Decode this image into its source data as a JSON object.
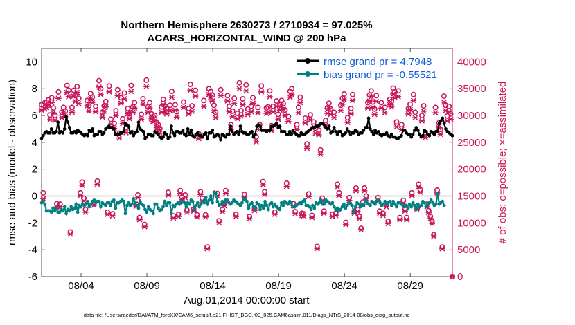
{
  "colors": {
    "rmse": "#000000",
    "bias": "#008080",
    "obs": "#c8175c",
    "legend_text": "#0b5bd8",
    "zero_line": "#b3b3b3"
  },
  "chart_data": {
    "type": "line",
    "title_line1": "Northern Hemisphere 2630273 / 2710934 = 97.025%",
    "title_line2": "ACARS_HORIZONTAL_WIND @ 200 hPa",
    "ylabel_left": "rmse and bias (model - observation)",
    "ylabel_right": "# of obs: o=possible; ×=assimilated",
    "xlabel": "Aug.01,2014 00:00:00 start",
    "footnote": "data file: /Users/raeder/DAI/ATM_forcXX/CAM6_setup/f.e21.FHIST_BGC.f09_025.CAM6assim.011/Diags_NTrS_2014-08/obs_diag_output.nc",
    "xlim": [
      1,
      32.2
    ],
    "ylim_left": [
      -6,
      11
    ],
    "ylim_right": [
      0,
      42500
    ],
    "yticks_left": [
      -6,
      -4,
      -2,
      0,
      2,
      4,
      6,
      8,
      10
    ],
    "yticks_right": [
      0,
      5000,
      10000,
      15000,
      20000,
      25000,
      30000,
      35000,
      40000
    ],
    "xticks": [
      {
        "day": 4,
        "label": "08/04"
      },
      {
        "day": 9,
        "label": "08/09"
      },
      {
        "day": 14,
        "label": "08/14"
      },
      {
        "day": 19,
        "label": "08/19"
      },
      {
        "day": 24,
        "label": "08/24"
      },
      {
        "day": 29,
        "label": "08/29"
      }
    ],
    "legend": [
      {
        "name": "rmse grand pr = 4.7948",
        "series": "rmse"
      },
      {
        "name": "bias grand pr = -0.55521",
        "series": "bias"
      }
    ],
    "series": [
      {
        "name": "rmse",
        "values": [
          4.3,
          4.5,
          4.7,
          4.8,
          4.7,
          4.7,
          5.0,
          4.7,
          4.7,
          4.8,
          5.5,
          4.7,
          4.8,
          4.7,
          5.0,
          5.9,
          5.5,
          5.1,
          4.7,
          4.7,
          4.8,
          4.7,
          4.9,
          4.8,
          4.7,
          4.6,
          4.5,
          4.6,
          4.5,
          4.9,
          4.8,
          5.0,
          4.5,
          4.6,
          4.6,
          4.8,
          4.8,
          4.6,
          4.7,
          5.0,
          5.1,
          5.2,
          5.1,
          5.1,
          5.0,
          4.6,
          4.6,
          4.6,
          4.7,
          4.7,
          4.8,
          5.4,
          5.3,
          5.2,
          4.7,
          4.8,
          4.5,
          4.7,
          4.8,
          5.5,
          5.0,
          4.9,
          4.8,
          4.3,
          4.4,
          4.6,
          4.6,
          4.5,
          4.5,
          4.8,
          4.7,
          4.6,
          4.4,
          4.3,
          4.4,
          4.7,
          4.6,
          4.3,
          4.4,
          5.2,
          4.7,
          4.5,
          4.8,
          4.8,
          4.7,
          4.7,
          4.9,
          4.6,
          4.5,
          5.0,
          4.6,
          4.9,
          4.5,
          4.4,
          4.6,
          4.7,
          4.5,
          4.5,
          4.4,
          4.6,
          4.7,
          4.3,
          4.7,
          4.7,
          4.9,
          4.4,
          4.5,
          4.6,
          4.5,
          4.2,
          4.6,
          4.5,
          4.4,
          4.6,
          4.6,
          5.2,
          4.8,
          4.6,
          4.7,
          4.8,
          4.6,
          5.2,
          4.8,
          4.7,
          4.7,
          4.6,
          4.6,
          4.7,
          4.8,
          4.4,
          4.6,
          5.2,
          5.3,
          5.2,
          4.9,
          4.9,
          4.9,
          4.8,
          4.9,
          4.9,
          5.2,
          5.2,
          5.3,
          5.4,
          5.1,
          5.2,
          4.8,
          4.8,
          4.8,
          4.6,
          4.6,
          4.8,
          4.6,
          4.9,
          4.7,
          4.6,
          4.5,
          4.5,
          4.7,
          4.6,
          4.6,
          4.7,
          4.8,
          4.9,
          5.0,
          5.1,
          5.1,
          5.2,
          5.2,
          5.3,
          5.4,
          5.4,
          5.3,
          5.1,
          5.0,
          5.2,
          4.7,
          4.8,
          5.1,
          4.8,
          4.6,
          4.8,
          4.8,
          4.5,
          4.6,
          4.7,
          5.0,
          4.8,
          4.6,
          4.7,
          4.7,
          4.9,
          4.8,
          4.6,
          4.7,
          4.7,
          4.9,
          5.1,
          5.1,
          5.8,
          5.0,
          4.8,
          4.6,
          4.9,
          4.7,
          4.8,
          4.6,
          4.5,
          4.6,
          4.6,
          4.7,
          4.5,
          4.4,
          4.6,
          4.4,
          4.4,
          4.3,
          4.3,
          4.4,
          4.5,
          4.9,
          4.9,
          4.7,
          4.6,
          4.6,
          4.4,
          4.6,
          4.9,
          5.1,
          4.9,
          4.6,
          4.4,
          4.5,
          4.9,
          4.8,
          4.6,
          4.5,
          4.8,
          4.7,
          4.6,
          4.8,
          4.8,
          5.4,
          5.6,
          5.8,
          5.4,
          5.0,
          4.8,
          4.7,
          4.6,
          4.5
        ]
      },
      {
        "name": "bias",
        "values": [
          -0.5,
          -0.4,
          -0.6,
          -1.1,
          -1.1,
          -1.1,
          -1.2,
          -0.9,
          -1.1,
          -0.9,
          -1.2,
          -1.2,
          -1.0,
          -1.1,
          -0.8,
          -1.3,
          -1.0,
          -1.1,
          -0.8,
          -1.0,
          -0.9,
          -0.6,
          -1.2,
          -0.7,
          -0.8,
          -0.6,
          -0.7,
          -0.6,
          -0.4,
          -0.8,
          -0.6,
          -0.4,
          -0.3,
          -0.5,
          -0.4,
          -0.4,
          -0.8,
          -0.5,
          -0.6,
          -0.7,
          -0.5,
          -0.5,
          -0.7,
          -0.4,
          -0.3,
          -0.9,
          -0.5,
          -0.5,
          -0.4,
          -0.3,
          -0.4,
          -1.3,
          -0.7,
          -0.5,
          -0.7,
          -0.6,
          -0.2,
          -0.5,
          -0.7,
          -0.9,
          -0.4,
          -0.6,
          -0.7,
          -1.0,
          -1.2,
          -0.8,
          -1.0,
          -1.1,
          -1.3,
          -0.6,
          -0.6,
          -0.9,
          -1.1,
          -1.0,
          -0.8,
          -0.4,
          -0.7,
          -0.5,
          -0.5,
          -1.3,
          -0.7,
          -0.8,
          -0.6,
          -0.5,
          -0.6,
          -0.5,
          -0.4,
          -0.5,
          -0.8,
          -0.5,
          -0.6,
          -0.3,
          -0.4,
          -1.0,
          -0.7,
          -0.5,
          -0.8,
          -0.6,
          -0.4,
          -0.5,
          -0.1,
          -0.6,
          -0.3,
          0.0,
          -0.5,
          0.3,
          0.2,
          -0.4,
          -0.7,
          -0.6,
          -0.4,
          -0.6,
          -0.3,
          -0.3,
          -0.5,
          -0.6,
          -0.5,
          -0.3,
          -0.4,
          -0.5,
          -0.6,
          -0.7,
          -0.5,
          -0.2,
          -0.3,
          -0.4,
          -0.9,
          -0.6,
          -0.5,
          -0.8,
          -0.9,
          -0.5,
          -0.6,
          -1.0,
          -0.7,
          -0.9,
          -0.4,
          -0.7,
          -1.0,
          -0.6,
          -0.5,
          -0.8,
          -0.6,
          -0.8,
          -0.9,
          -1.0,
          -0.5,
          -0.7,
          -0.4,
          -0.5,
          -0.6,
          -0.4,
          -0.5,
          -0.8,
          -0.8,
          -0.7,
          -0.6,
          -0.5,
          -0.6,
          -0.4,
          -0.3,
          -0.7,
          -0.7,
          -0.8,
          -1.0,
          -0.7,
          -0.9,
          -0.5,
          -0.6,
          -0.5,
          -0.3,
          -0.6,
          -0.6,
          -0.3,
          -0.4,
          -0.5,
          -0.6,
          -0.5,
          -0.8,
          -1.0,
          -0.9,
          -1.1,
          -1.0,
          -0.8,
          -0.6,
          -0.9,
          -0.7,
          -0.5,
          -0.6,
          -0.7,
          -1.2,
          -0.8,
          -0.5,
          -0.6,
          -0.8,
          -0.6,
          -0.7,
          -0.3,
          -0.5,
          -0.6,
          -0.7,
          -0.4,
          -0.5,
          -0.6,
          -0.4,
          -0.3,
          -0.5,
          -0.7,
          -0.6,
          -0.4,
          -0.6,
          -0.5,
          -0.4,
          -0.7,
          -0.4,
          -0.6,
          -0.8,
          -0.5,
          -0.5,
          -0.6,
          -0.7,
          -0.8,
          -0.7,
          -0.9,
          -0.6,
          -0.8,
          -0.5,
          -0.7,
          -1.0,
          -0.6,
          -0.8,
          -0.7,
          -0.4,
          -0.5,
          -0.8,
          -0.6,
          -0.5,
          -0.3,
          -0.5,
          -0.7,
          -0.6,
          0.2,
          -0.6,
          -0.5,
          -0.4,
          -0.7
        ]
      },
      {
        "name": "obs_possible",
        "values": [
          32000,
          15600,
          32400,
          32500,
          32900,
          30100,
          33300,
          31400,
          30000,
          13600,
          34400,
          13500,
          30600,
          31500,
          30800,
          35600,
          34700,
          8300,
          31500,
          34700,
          33700,
          35400,
          33200,
          15600,
          17600,
          14600,
          12500,
          32800,
          31800,
          34100,
          33400,
          13800,
          31700,
          17800,
          36500,
          35000,
          30600,
          31800,
          32600,
          12000,
          35500,
          29300,
          11700,
          28500,
          30900,
          34800,
          26700,
          33300,
          29400,
          34200,
          27700,
          31300,
          30300,
          35600,
          31600,
          32400,
          13500,
          15200,
          11000,
          30200,
          33100,
          9700,
          36600,
          31600,
          32400,
          30300,
          29800,
          30000,
          28700,
          28300,
          27600,
          31600,
          33000,
          31800,
          31300,
          15700,
          31900,
          34500,
          11300,
          32000,
          30700,
          11600,
          16000,
          14800,
          32500,
          15200,
          12400,
          31300,
          35800,
          31800,
          12600,
          34700,
          11500,
          26600,
          15800,
          14600,
          32800,
          11500,
          5500,
          35000,
          34500,
          33800,
          31900,
          30600,
          15500,
          10400,
          34800,
          12500,
          13700,
          16000,
          33700,
          31700,
          28300,
          30800,
          33200,
          11600,
          30400,
          36100,
          30900,
          33100,
          15300,
          35700,
          31200,
          11200,
          31700,
          33300,
          12700,
          26000,
          31500,
          28300,
          35500,
          17700,
          15800,
          31400,
          31600,
          34600,
          28100,
          31700,
          12000,
          32700,
          30200,
          32000,
          32800,
          32200,
          31000,
          17400,
          29800,
          34500,
          35000,
          13600,
          12100,
          28300,
          31500,
          33400,
          11800,
          11700,
          29500,
          24700,
          15400,
          30100,
          11400,
          28800,
          27600,
          5600,
          27300,
          23600,
          14600,
          12200,
          29100,
          31400,
          32300,
          31200,
          11600,
          30600,
          11800,
          17200,
          15600,
          31900,
          33200,
          34000,
          10100,
          29600,
          14700,
          31300,
          33900,
          12200,
          16500,
          12500,
          11200,
          9000,
          13900,
          16500,
          15000,
          32400,
          33800,
          34600,
          32500,
          31200,
          33700,
          14700,
          12200,
          32400,
          11800,
          31500,
          13400,
          10300,
          33000,
          32600,
          35100,
          34400,
          28800,
          34600,
          11000,
          28300,
          14200,
          12600,
          11000,
          31300,
          32100,
          15600,
          33900,
          30600,
          13000,
          17200,
          16200,
          30000,
          31800,
          26800,
          13500,
          12300,
          11200,
          10300,
          7800,
          31500,
          16100,
          28600,
          27400,
          5500,
          33600,
          31900,
          29900,
          31700,
          30300,
          0
        ]
      },
      {
        "name": "obs_assimilated",
        "values": [
          31000,
          14500,
          31200,
          31500,
          31900,
          29200,
          32400,
          30500,
          29100,
          13000,
          33200,
          13000,
          29600,
          30500,
          29800,
          34300,
          33500,
          7900,
          30600,
          33600,
          32600,
          34300,
          32200,
          15100,
          17000,
          14100,
          12000,
          31800,
          30800,
          33100,
          32400,
          13300,
          30700,
          17200,
          35300,
          33900,
          29700,
          30800,
          31600,
          11600,
          34400,
          28400,
          11300,
          27600,
          30000,
          33700,
          25800,
          32300,
          28500,
          33100,
          26800,
          30300,
          29400,
          34500,
          30600,
          31400,
          13100,
          14700,
          10600,
          29300,
          32100,
          9300,
          35400,
          30600,
          31400,
          29400,
          28900,
          29000,
          27800,
          27400,
          26700,
          30600,
          32000,
          30800,
          30300,
          15200,
          30900,
          33400,
          10900,
          31000,
          29700,
          11200,
          15500,
          14300,
          31500,
          14700,
          12000,
          30300,
          34700,
          30800,
          12200,
          33600,
          11100,
          25700,
          15300,
          14100,
          31700,
          11100,
          5200,
          33900,
          33400,
          32700,
          30900,
          29600,
          15000,
          10000,
          33700,
          12100,
          13200,
          15500,
          32700,
          30700,
          27400,
          29800,
          32200,
          11200,
          29400,
          35000,
          29900,
          32000,
          14800,
          34600,
          30200,
          10800,
          30700,
          32300,
          12300,
          25100,
          30500,
          27400,
          34400,
          17100,
          15300,
          30400,
          30600,
          33500,
          27200,
          30700,
          11600,
          31700,
          29300,
          31000,
          31800,
          31200,
          30000,
          16800,
          28900,
          33400,
          33900,
          13200,
          11700,
          27400,
          30500,
          32400,
          11400,
          11300,
          28600,
          23900,
          14900,
          29200,
          11000,
          27900,
          26700,
          5200,
          26400,
          22800,
          14100,
          11800,
          28200,
          30400,
          31300,
          30200,
          11200,
          29600,
          11400,
          16700,
          15100,
          30900,
          32100,
          32900,
          9700,
          28700,
          14200,
          30300,
          32800,
          11800,
          16000,
          12100,
          10800,
          8700,
          13400,
          16000,
          14500,
          31400,
          32700,
          33500,
          31500,
          30200,
          32600,
          14200,
          11800,
          31400,
          11400,
          30500,
          13000,
          9900,
          32000,
          31600,
          34000,
          33300,
          27900,
          33500,
          10600,
          27400,
          13700,
          12200,
          10600,
          30300,
          31100,
          15100,
          32800,
          29600,
          12600,
          16700,
          15700,
          29000,
          30800,
          25900,
          13000,
          11900,
          10800,
          9900,
          7500,
          30500,
          15600,
          27700,
          26500,
          5200,
          32500,
          30900,
          29000,
          30700,
          29300,
          0
        ]
      }
    ]
  }
}
